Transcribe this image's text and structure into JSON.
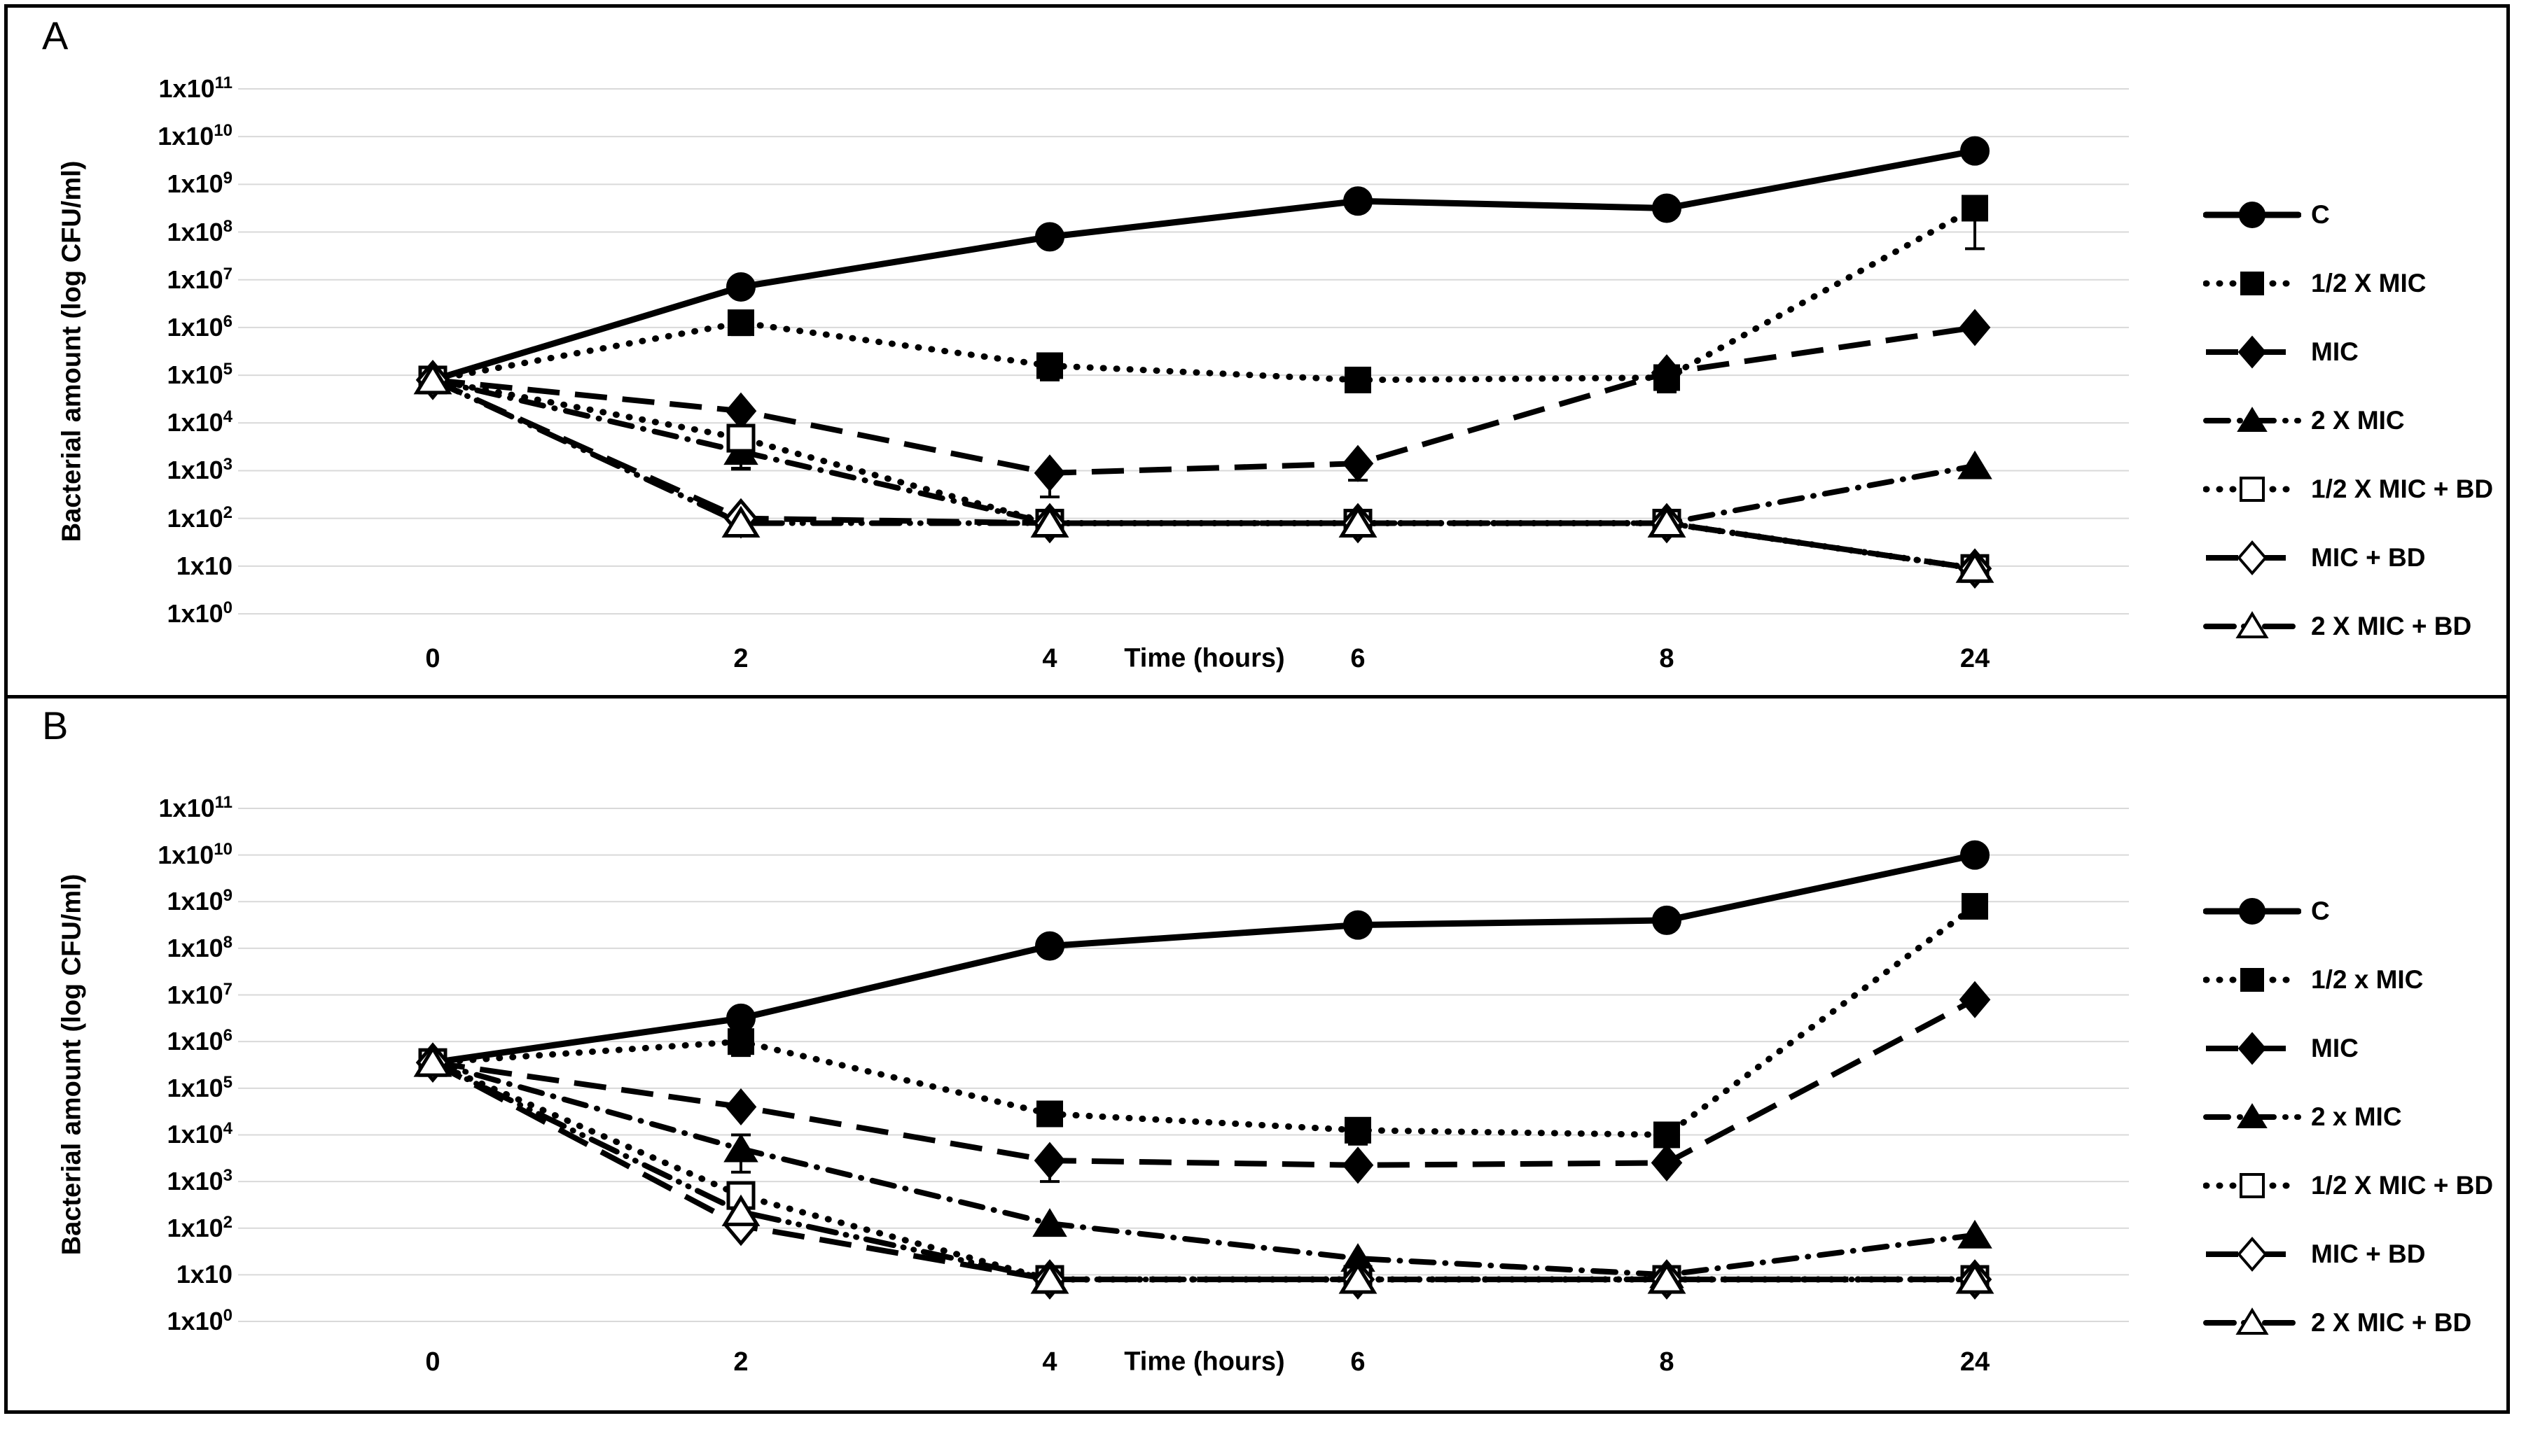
{
  "figure": {
    "background_color": "#ffffff",
    "border_color": "#000000",
    "grid_color": "#d9d9d9",
    "series_color": "#000000"
  },
  "panels": [
    {
      "label": "A",
      "y_axis": {
        "title": "Bacterial amount (log CFU/ml)",
        "tick_labels": [
          "1x10^11",
          "1x10^10",
          "1x10^9",
          "1x10^8",
          "1x10^7",
          "1x10^6",
          "1x10^5",
          "1x10^4",
          "1x10^3",
          "1x10^2",
          "1x10",
          "1x10^0"
        ]
      },
      "x_axis": {
        "title": "Time (hours)",
        "tick_labels": [
          "0",
          "2",
          "4",
          "6",
          "8",
          "24"
        ]
      },
      "legend_labels": [
        "C",
        "1/2 X MIC",
        "MIC",
        "2 X MIC",
        "1/2 X MIC + BD",
        "MIC + BD",
        "2 X MIC + BD"
      ],
      "chart_data": {
        "type": "line",
        "x_hours": [
          0,
          2,
          4,
          6,
          8,
          24
        ],
        "x_scale": "categorical",
        "y_scale": "log10",
        "ylabel": "Bacterial amount (log CFU/ml)",
        "xlabel": "Time (hours)",
        "ylim_log10": [
          0,
          11
        ],
        "grid": "horizontal-only",
        "legend_position": "right",
        "series": [
          {
            "name": "C",
            "marker": "circle",
            "marker_fill": "filled",
            "line_style": "solid",
            "log10_cfu": [
              4.9,
              6.85,
              7.9,
              8.65,
              8.5,
              9.7
            ],
            "error_down_log10": [
              0,
              0,
              0.15,
              0,
              0,
              0
            ],
            "error_up_log10": [
              0,
              0,
              0,
              0,
              0,
              0
            ]
          },
          {
            "name": "1/2 X MIC",
            "marker": "square",
            "marker_fill": "filled",
            "line_style": "dotted",
            "log10_cfu": [
              4.9,
              6.1,
              5.2,
              4.9,
              4.95,
              8.5
            ],
            "error_down_log10": [
              0,
              0.25,
              0.3,
              0,
              0.3,
              0.85
            ],
            "error_up_log10": [
              0,
              0,
              0,
              0,
              0,
              0.15
            ]
          },
          {
            "name": "MIC",
            "marker": "diamond",
            "marker_fill": "filled",
            "line_style": "long-dash",
            "log10_cfu": [
              4.9,
              4.25,
              2.95,
              3.15,
              5.05,
              6.0
            ],
            "error_down_log10": [
              0,
              0,
              0.5,
              0.35,
              0,
              0
            ],
            "error_up_log10": [
              0,
              0,
              0,
              0,
              0,
              0
            ]
          },
          {
            "name": "2 X MIC",
            "marker": "triangle",
            "marker_fill": "filled",
            "line_style": "dash-dot",
            "log10_cfu": [
              4.9,
              3.4,
              1.9,
              1.9,
              1.9,
              3.1
            ],
            "error_down_log10": [
              0,
              0.35,
              0,
              0,
              0,
              0
            ],
            "error_up_log10": [
              0,
              0,
              0,
              0,
              0,
              0
            ]
          },
          {
            "name": "1/2 X MIC + BD",
            "marker": "square",
            "marker_fill": "open",
            "line_style": "dotted",
            "log10_cfu": [
              4.9,
              3.68,
              1.9,
              1.9,
              1.9,
              0.95
            ],
            "error_down_log10": [
              0,
              0.65,
              0,
              0,
              0,
              0
            ],
            "error_up_log10": [
              0,
              0,
              0,
              0,
              0,
              0
            ]
          },
          {
            "name": "MIC + BD",
            "marker": "diamond",
            "marker_fill": "open",
            "line_style": "long-dash",
            "log10_cfu": [
              4.9,
              2.0,
              1.9,
              1.9,
              1.9,
              0.95
            ],
            "error_down_log10": [
              0,
              0,
              0,
              0,
              0,
              0
            ],
            "error_up_log10": [
              0,
              0,
              0,
              0,
              0,
              0
            ]
          },
          {
            "name": "2 X MIC + BD",
            "marker": "triangle",
            "marker_fill": "open",
            "line_style": "dash-dot-dot",
            "log10_cfu": [
              4.9,
              1.9,
              1.9,
              1.9,
              1.9,
              0.95
            ],
            "error_down_log10": [
              0,
              0,
              0,
              0,
              0,
              0
            ],
            "error_up_log10": [
              0,
              0,
              0,
              0,
              0,
              0
            ]
          }
        ]
      }
    },
    {
      "label": "B",
      "y_axis": {
        "title": "Bacterial amount (log CFU/ml)",
        "tick_labels": [
          "1x10^11",
          "1x10^10",
          "1x10^9",
          "1x10^8",
          "1x10^7",
          "1x10^6",
          "1x10^5",
          "1x10^4",
          "1x10^3",
          "1x10^2",
          "1x10",
          "1x10^0"
        ]
      },
      "x_axis": {
        "title": "Time (hours)",
        "tick_labels": [
          "0",
          "2",
          "4",
          "6",
          "8",
          "24"
        ]
      },
      "legend_labels": [
        "C",
        "1/2 x MIC",
        "MIC",
        "2 x MIC",
        "1/2 X MIC + BD",
        "MIC + BD",
        "2 X MIC + BD"
      ],
      "chart_data": {
        "type": "line",
        "x_hours": [
          0,
          2,
          4,
          6,
          8,
          24
        ],
        "x_scale": "categorical",
        "y_scale": "log10",
        "ylabel": "Bacterial amount (log CFU/ml)",
        "xlabel": "Time (hours)",
        "ylim_log10": [
          0,
          11
        ],
        "grid": "horizontal-only",
        "legend_position": "right",
        "series": [
          {
            "name": "C",
            "marker": "circle",
            "marker_fill": "filled",
            "line_style": "solid",
            "log10_cfu": [
              5.55,
              6.5,
              8.05,
              8.5,
              8.6,
              10.0
            ],
            "error_down_log10": [
              0,
              0,
              0.1,
              0,
              0,
              0
            ],
            "error_up_log10": [
              0,
              0,
              0,
              0,
              0,
              0
            ]
          },
          {
            "name": "1/2 x MIC",
            "marker": "square",
            "marker_fill": "filled",
            "line_style": "dotted",
            "log10_cfu": [
              5.55,
              6.0,
              4.45,
              4.1,
              4.0,
              8.9
            ],
            "error_down_log10": [
              0,
              0.3,
              0,
              0.3,
              0,
              0
            ],
            "error_up_log10": [
              0,
              0,
              0,
              0,
              0,
              0
            ]
          },
          {
            "name": "MIC",
            "marker": "diamond",
            "marker_fill": "filled",
            "line_style": "long-dash",
            "log10_cfu": [
              5.55,
              4.6,
              3.45,
              3.35,
              3.4,
              6.9
            ],
            "error_down_log10": [
              0,
              0,
              0.45,
              0,
              0,
              0
            ],
            "error_up_log10": [
              0,
              0,
              0,
              0,
              0,
              0
            ]
          },
          {
            "name": "2 x MIC",
            "marker": "triangle",
            "marker_fill": "filled",
            "line_style": "dash-dot",
            "log10_cfu": [
              5.55,
              3.7,
              2.1,
              1.35,
              1.0,
              1.85
            ],
            "error_down_log10": [
              0,
              0.5,
              0,
              0,
              0,
              0
            ],
            "error_up_log10": [
              0,
              0.3,
              0,
              0,
              0,
              0
            ]
          },
          {
            "name": "1/2 X MIC + BD",
            "marker": "square",
            "marker_fill": "open",
            "line_style": "dotted",
            "log10_cfu": [
              5.55,
              2.7,
              0.9,
              0.9,
              0.9,
              0.9
            ],
            "error_down_log10": [
              0,
              0,
              0,
              0,
              0,
              0
            ],
            "error_up_log10": [
              0,
              0,
              0,
              0,
              0,
              0
            ]
          },
          {
            "name": "MIC + BD",
            "marker": "diamond",
            "marker_fill": "open",
            "line_style": "long-dash",
            "log10_cfu": [
              5.55,
              2.05,
              0.9,
              0.9,
              0.9,
              0.9
            ],
            "error_down_log10": [
              0,
              0,
              0,
              0,
              0,
              0
            ],
            "error_up_log10": [
              0,
              0,
              0,
              0,
              0,
              0
            ]
          },
          {
            "name": "2 X MIC + BD",
            "marker": "triangle",
            "marker_fill": "open",
            "line_style": "dash-dot-dot",
            "log10_cfu": [
              5.55,
              2.35,
              0.9,
              0.9,
              0.9,
              0.9
            ],
            "error_down_log10": [
              0,
              0,
              0,
              0,
              0,
              0
            ],
            "error_up_log10": [
              0,
              0,
              0,
              0,
              0,
              0
            ]
          }
        ]
      }
    }
  ]
}
